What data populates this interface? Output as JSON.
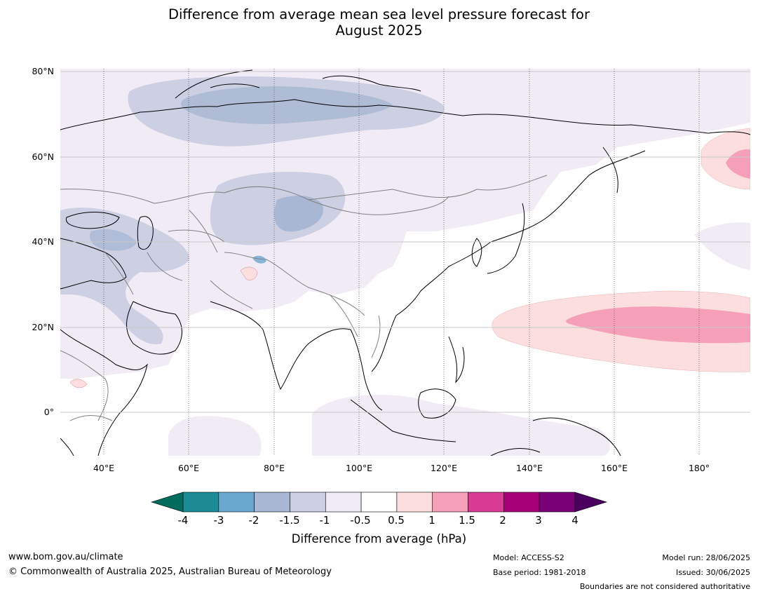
{
  "title_line1": "Difference from average mean sea level pressure forecast for",
  "title_line2": "August 2025",
  "latitude_labels": [
    "80°N",
    "60°N",
    "40°N",
    "20°N",
    "0°"
  ],
  "longitude_labels": [
    "40°E",
    "60°E",
    "80°E",
    "100°E",
    "120°E",
    "140°E",
    "160°E",
    "180°"
  ],
  "colorbar": {
    "label": "Difference from average (hPa)",
    "ticks": [
      "-4",
      "-3",
      "-2",
      "-1.5",
      "-1",
      "-0.5",
      "0.5",
      "1",
      "1.5",
      "2",
      "3",
      "4"
    ],
    "colors": [
      "#1b8c96",
      "#6ba8d0",
      "#a8b8d4",
      "#cdcfe3",
      "#f1ebf5",
      "#ffffff",
      "#fddede",
      "#f59fb8",
      "#d93a93",
      "#a8007a",
      "#7a0077"
    ],
    "under_color": "#006c5e",
    "over_color": "#4b0060"
  },
  "footer": {
    "website": "www.bom.gov.au/climate",
    "copyright": "© Commonwealth of Australia 2025, Australian Bureau of Meteorology",
    "model": "Model: ACCESS-S2",
    "base_period": "Base period: 1981-2018",
    "model_run": "Model run: 28/06/2025",
    "issued": "Issued: 30/06/2025",
    "disclaimer": "Boundaries are not considered authoritative"
  }
}
